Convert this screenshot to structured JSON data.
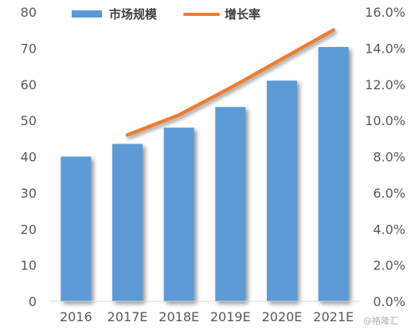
{
  "chart_data": {
    "type": "bar",
    "categories": [
      "2016",
      "2017E",
      "2018E",
      "2019E",
      "2020E",
      "2021E"
    ],
    "series": [
      {
        "name": "市场规模",
        "type": "bar",
        "axis": "left",
        "values": [
          40,
          43.5,
          48,
          53.7,
          61,
          70.3
        ],
        "color": "#5b9bd5"
      },
      {
        "name": "增长率",
        "type": "line",
        "axis": "right",
        "values": [
          null,
          9.2,
          10.3,
          11.8,
          13.4,
          15.0
        ],
        "color": "#ed7d31"
      }
    ],
    "y_left": {
      "min": 0,
      "max": 80,
      "ticks": [
        0,
        10,
        20,
        30,
        40,
        50,
        60,
        70,
        80
      ],
      "tick_labels": [
        "0",
        "10",
        "20",
        "30",
        "40",
        "50",
        "60",
        "70",
        "80"
      ]
    },
    "y_right": {
      "min": 0,
      "max": 16,
      "ticks": [
        0,
        2,
        4,
        6,
        8,
        10,
        12,
        14,
        16
      ],
      "tick_labels": [
        "0.0%",
        "2.0%",
        "4.0%",
        "6.0%",
        "8.0%",
        "10.0%",
        "12.0%",
        "14.0%",
        "16.0%"
      ]
    },
    "title": "",
    "xlabel": "",
    "ylabel": "",
    "grid": false,
    "legend": {
      "position": "top",
      "items": [
        {
          "label": "市场规模",
          "color": "#5b9bd5",
          "shape": "bar"
        },
        {
          "label": "增长率",
          "color": "#ed7d31",
          "shape": "line"
        }
      ]
    }
  },
  "watermark": "@格隆汇"
}
